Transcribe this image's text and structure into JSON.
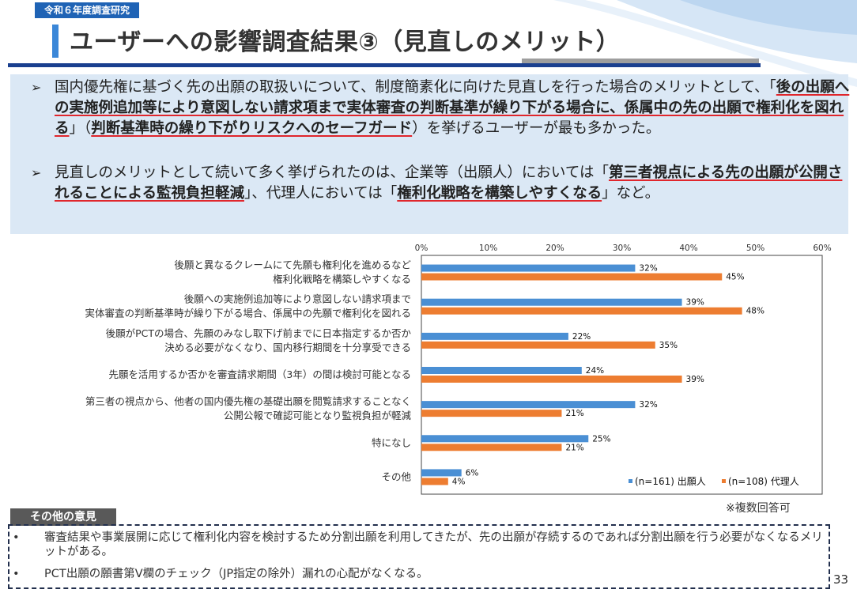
{
  "header": {
    "year_tag": "令和６年度調査研究",
    "title": "ユーザーへの影響調査結果③（見直しのメリット）"
  },
  "summary": {
    "bullet1": {
      "mark": "➢",
      "t1": "国内優先権に基づく先の出願の取扱いについて、制度簡素化に向けた見直しを行った場合のメリットとして、「",
      "h1": "後の出願への実施例追加等により意図しない請求項まで実体審査の判断基準が繰り下がる場合に、係属中の先の出願で権利化を図れる",
      "t2": "」（",
      "h2": "判断基準時の繰り下がりリスクへのセーフガード",
      "t3": "）を挙げるユーザーが最も多かった。"
    },
    "bullet2": {
      "mark": "➢",
      "t1": "見直しのメリットとして続いて多く挙げられたのは、企業等（出願人）においては「",
      "h1": "第三者視点による先の出願が公開されることによる監視負担軽減",
      "t2": "」、代理人においては「",
      "h2": "権利化戦略を構築しやすくなる",
      "t3": "」など。"
    }
  },
  "chart_data": {
    "type": "bar",
    "orientation": "horizontal",
    "x_ticks": [
      "0%",
      "10%",
      "20%",
      "30%",
      "40%",
      "50%",
      "60%"
    ],
    "xlim": [
      0,
      60
    ],
    "categories": [
      [
        "後願と異なるクレームにて先願も権利化を進めるなど",
        "権利化戦略を構築しやすくなる"
      ],
      [
        "後願への実施例追加等により意図しない請求項まで",
        "実体審査の判断基準時が繰り下がる場合、係属中の先願で権利化を図れる"
      ],
      [
        "後願がPCTの場合、先願のみなし取下げ前までに日本指定するか否か",
        "決める必要がなくなり、国内移行期間を十分享受できる"
      ],
      [
        "先願を活用するか否かを審査請求期間（3年）の間は検討可能となる"
      ],
      [
        "第三者の視点から、他者の国内優先権の基礎出願を閲覧請求することなく",
        "公開公報で確認可能となり監視負担が軽減"
      ],
      [
        "特になし"
      ],
      [
        "その他"
      ]
    ],
    "series": [
      {
        "name": "(n=161) 出願人",
        "color": "#4a8fd4",
        "values": [
          32,
          39,
          22,
          24,
          32,
          25,
          6
        ]
      },
      {
        "name": "(n=108) 代理人",
        "color": "#ed7d31",
        "values": [
          45,
          48,
          35,
          39,
          21,
          21,
          4
        ]
      }
    ],
    "value_suffix": "%",
    "legend_position": "bottom-right",
    "grid": false
  },
  "note": "※複数回答可",
  "others": {
    "tag": "その他の意見",
    "items": [
      {
        "dot": "•",
        "text": "審査結果や事業展開に応じて権利化内容を検討するため分割出願を利用してきたが、先の出願が存続するのであれば分割出願を行う必要がなくなるメリットがある。"
      },
      {
        "dot": "•",
        "text": "PCT出願の願書第Ⅴ欄のチェック（JP指定の除外）漏れの心配がなくなる。"
      }
    ]
  },
  "page_number": "33"
}
